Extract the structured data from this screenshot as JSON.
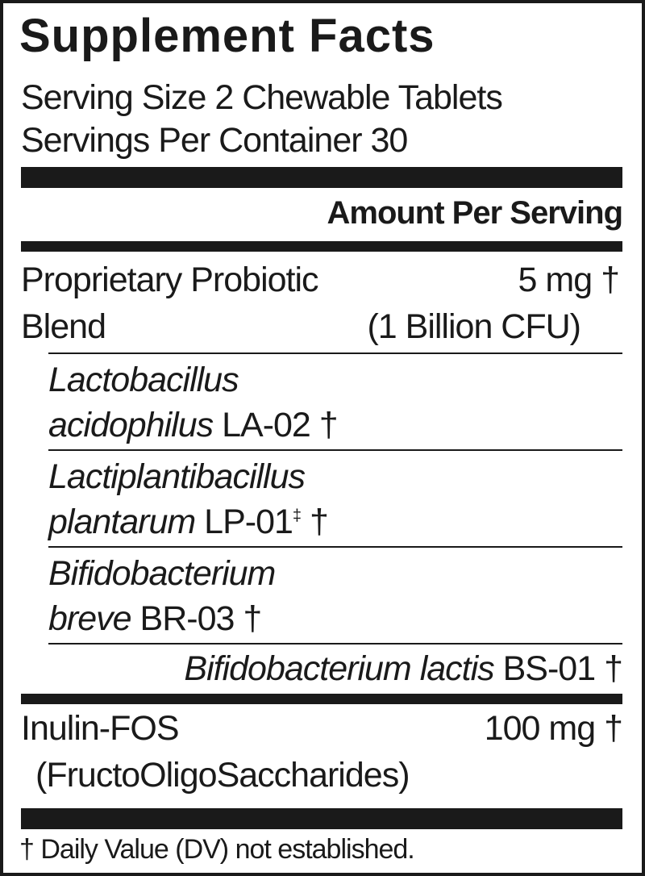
{
  "title": "Supplement Facts",
  "serving_size": "Serving Size 2 Chewable Tablets",
  "servings_per_container": "Servings Per Container 30",
  "amount_header": "Amount Per Serving",
  "blend": {
    "name_line1": "Proprietary Probiotic",
    "name_line2": "Blend",
    "amount": "5 mg †",
    "cfu": "(1 Billion CFU)",
    "strains": [
      {
        "italic1": "Lactobacillus",
        "italic2": "acidophilus",
        "code": " LA-02 †"
      },
      {
        "italic1": "Lactiplantibacillus",
        "italic2": "plantarum",
        "code": " LP-01",
        "sup": "‡",
        "dagger": " †"
      },
      {
        "italic1": "Bifidobacterium",
        "italic2": "breve",
        "code": " BR-03 †"
      },
      {
        "italic": "Bifidobacterium lactis",
        "code": " BS-01 †"
      }
    ]
  },
  "inulin": {
    "name": "Inulin-FOS",
    "amount": "100 mg †",
    "description": "(FructoOligoSaccharides)"
  },
  "footnote": "† Daily Value (DV) not established."
}
